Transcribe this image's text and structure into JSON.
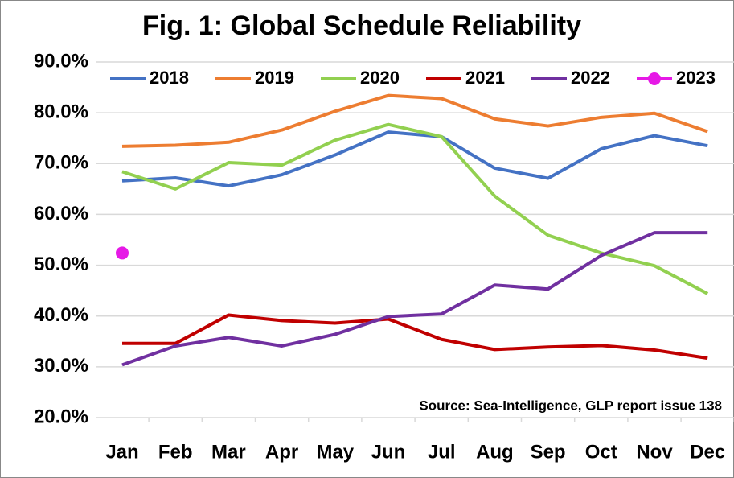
{
  "chart_data": {
    "type": "line",
    "title": "Fig. 1: Global Schedule Reliability",
    "annotation": "Source: Sea-Intelligence, GLP report issue 138",
    "categories": [
      "Jan",
      "Feb",
      "Mar",
      "Apr",
      "May",
      "Jun",
      "Jul",
      "Aug",
      "Sep",
      "Oct",
      "Nov",
      "Dec"
    ],
    "series": [
      {
        "name": "2018",
        "color": "#4472c4",
        "values": [
          66.6,
          67.2,
          65.6,
          67.8,
          71.7,
          76.2,
          75.3,
          69.1,
          67.1,
          72.9,
          75.5,
          73.5
        ]
      },
      {
        "name": "2019",
        "color": "#ed7d31",
        "values": [
          73.4,
          73.6,
          74.2,
          76.6,
          80.3,
          83.4,
          82.8,
          78.8,
          77.4,
          79.1,
          79.9,
          76.3
        ]
      },
      {
        "name": "2020",
        "color": "#92d050",
        "values": [
          68.4,
          65.0,
          70.2,
          69.7,
          74.6,
          77.7,
          75.3,
          63.6,
          55.9,
          52.4,
          49.9,
          44.4
        ]
      },
      {
        "name": "2021",
        "color": "#c00000",
        "values": [
          34.6,
          34.6,
          40.2,
          39.1,
          38.6,
          39.4,
          35.4,
          33.4,
          33.9,
          34.2,
          33.3,
          31.7
        ]
      },
      {
        "name": "2022",
        "color": "#7030a0",
        "values": [
          30.4,
          34.1,
          35.8,
          34.1,
          36.4,
          39.9,
          40.4,
          46.1,
          45.3,
          51.9,
          56.4,
          56.4
        ]
      },
      {
        "name": "2023",
        "color": "#e619e6",
        "values": [
          52.4,
          null,
          null,
          null,
          null,
          null,
          null,
          null,
          null,
          null,
          null,
          null
        ]
      }
    ],
    "ylim": [
      20,
      90
    ],
    "yticks": [
      {
        "value": 20,
        "label": "20.0%"
      },
      {
        "value": 30,
        "label": "30.0%"
      },
      {
        "value": 40,
        "label": "40.0%"
      },
      {
        "value": 50,
        "label": "50.0%"
      },
      {
        "value": 60,
        "label": "60.0%"
      },
      {
        "value": 70,
        "label": "70.0%"
      },
      {
        "value": 80,
        "label": "80.0%"
      },
      {
        "value": 90,
        "label": "90.0%"
      }
    ],
    "grid": true
  }
}
